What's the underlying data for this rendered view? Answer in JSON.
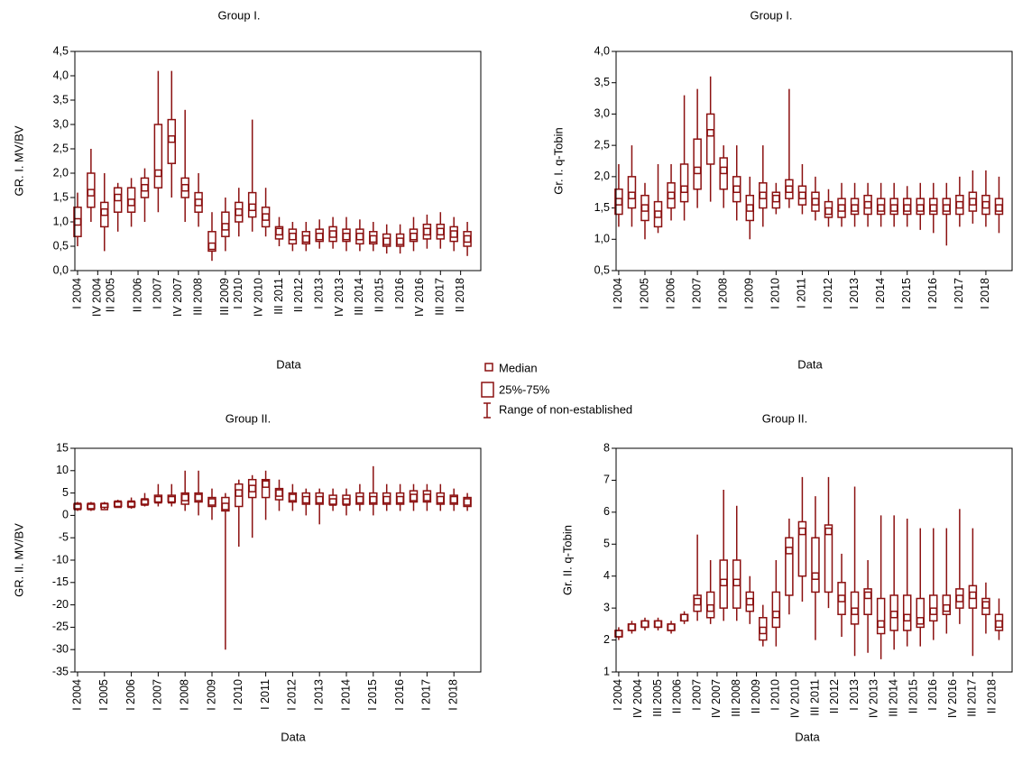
{
  "chart_data": [
    {
      "type": "box",
      "title": "Group I.",
      "x_label": "Data",
      "y_label": "GR. I. MV/BV",
      "color": "#8b1010",
      "xlim": [
        2003.9,
        2019
      ],
      "ylim": [
        0,
        4.5
      ],
      "yticks": [
        {
          "value": 0,
          "label": "0,0"
        },
        {
          "value": 0.5,
          "label": "0,5"
        },
        {
          "value": 1,
          "label": "1,0"
        },
        {
          "value": 1.5,
          "label": "1,5"
        },
        {
          "value": 2,
          "label": "2,0"
        },
        {
          "value": 2.5,
          "label": "2,5"
        },
        {
          "value": 3,
          "label": "3,0"
        },
        {
          "value": 3.5,
          "label": "3,5"
        },
        {
          "value": 4,
          "label": "4,0"
        },
        {
          "value": 4.5,
          "label": "4,5"
        }
      ],
      "xticks": [
        {
          "value": 2004,
          "label": "I 2004"
        },
        {
          "value": 2004.75,
          "label": "IV 2004"
        },
        {
          "value": 2005.25,
          "label": "II 2005"
        },
        {
          "value": 2006.25,
          "label": "II 2006"
        },
        {
          "value": 2007,
          "label": "I 2007"
        },
        {
          "value": 2007.75,
          "label": "IV 2007"
        },
        {
          "value": 2008.5,
          "label": "III 2008"
        },
        {
          "value": 2009.5,
          "label": "III 2009"
        },
        {
          "value": 2010,
          "label": "I 2010"
        },
        {
          "value": 2010.75,
          "label": "IV 2010"
        },
        {
          "value": 2011.5,
          "label": "III 2011"
        },
        {
          "value": 2012.25,
          "label": "II 2012"
        },
        {
          "value": 2013,
          "label": "I 2013"
        },
        {
          "value": 2013.75,
          "label": "IV 2013"
        },
        {
          "value": 2014.5,
          "label": "III 2014"
        },
        {
          "value": 2015.25,
          "label": "II 2015"
        },
        {
          "value": 2016,
          "label": "I 2016"
        },
        {
          "value": 2016.75,
          "label": "IV 2016"
        },
        {
          "value": 2017.5,
          "label": "III 2017"
        },
        {
          "value": 2018.25,
          "label": "II 2018"
        }
      ],
      "x": [
        2004,
        2004.5,
        2005,
        2005.5,
        2006,
        2006.5,
        2007,
        2007.5,
        2008,
        2008.5,
        2009,
        2009.5,
        2010,
        2010.5,
        2011,
        2011.5,
        2012,
        2012.5,
        2013,
        2013.5,
        2014,
        2014.5,
        2015,
        2015.5,
        2016,
        2016.5,
        2017,
        2017.5,
        2018,
        2018.5
      ],
      "median": [
        1.0,
        1.6,
        1.2,
        1.5,
        1.4,
        1.7,
        2.0,
        2.7,
        1.7,
        1.4,
        0.5,
        0.9,
        1.2,
        1.3,
        1.1,
        0.8,
        0.7,
        0.65,
        0.7,
        0.75,
        0.7,
        0.7,
        0.65,
        0.6,
        0.6,
        0.7,
        0.8,
        0.8,
        0.75,
        0.65
      ],
      "q1": [
        0.7,
        1.3,
        0.9,
        1.2,
        1.2,
        1.5,
        1.7,
        2.2,
        1.5,
        1.2,
        0.4,
        0.7,
        1.0,
        1.1,
        0.9,
        0.65,
        0.55,
        0.55,
        0.6,
        0.6,
        0.6,
        0.55,
        0.55,
        0.5,
        0.5,
        0.6,
        0.65,
        0.65,
        0.6,
        0.5
      ],
      "q3": [
        1.3,
        2.0,
        1.4,
        1.7,
        1.7,
        1.9,
        3.0,
        3.1,
        1.9,
        1.6,
        0.8,
        1.2,
        1.4,
        1.6,
        1.3,
        0.9,
        0.85,
        0.8,
        0.85,
        0.9,
        0.85,
        0.85,
        0.8,
        0.75,
        0.75,
        0.85,
        0.95,
        0.95,
        0.9,
        0.8
      ],
      "min": [
        0.5,
        1.0,
        0.4,
        0.8,
        0.9,
        1.0,
        1.2,
        1.5,
        1.0,
        0.9,
        0.2,
        0.4,
        0.7,
        0.8,
        0.7,
        0.5,
        0.4,
        0.4,
        0.45,
        0.45,
        0.4,
        0.4,
        0.4,
        0.35,
        0.35,
        0.4,
        0.45,
        0.45,
        0.4,
        0.3
      ],
      "max": [
        1.6,
        2.5,
        2.0,
        1.8,
        1.9,
        2.1,
        4.1,
        4.1,
        3.3,
        2.0,
        1.2,
        1.5,
        1.7,
        3.1,
        1.7,
        1.1,
        1.0,
        1.0,
        1.05,
        1.1,
        1.1,
        1.05,
        1.0,
        0.95,
        0.95,
        1.1,
        1.15,
        1.2,
        1.1,
        1.0
      ]
    },
    {
      "type": "box",
      "title": "Group I.",
      "x_label": "Data",
      "y_label": "Gr. I. q-Tobin",
      "color": "#8b1010",
      "xlim": [
        2003.9,
        2019
      ],
      "ylim": [
        0.5,
        4
      ],
      "yticks": [
        {
          "value": 0.5,
          "label": "0,5"
        },
        {
          "value": 1,
          "label": "1,0"
        },
        {
          "value": 1.5,
          "label": "1,5"
        },
        {
          "value": 2,
          "label": "2,0"
        },
        {
          "value": 2.5,
          "label": "2,5"
        },
        {
          "value": 3,
          "label": "3,0"
        },
        {
          "value": 3.5,
          "label": "3,5"
        },
        {
          "value": 4,
          "label": "4,0"
        }
      ],
      "xticks": [
        {
          "value": 2004,
          "label": "I 2004"
        },
        {
          "value": 2005,
          "label": "I 2005"
        },
        {
          "value": 2006,
          "label": "I 2006"
        },
        {
          "value": 2007,
          "label": "I 2007"
        },
        {
          "value": 2008,
          "label": "I 2008"
        },
        {
          "value": 2009,
          "label": "I 2009"
        },
        {
          "value": 2010,
          "label": "I 2010"
        },
        {
          "value": 2011,
          "label": "I 2011"
        },
        {
          "value": 2012,
          "label": "I 2012"
        },
        {
          "value": 2013,
          "label": "I 2013"
        },
        {
          "value": 2014,
          "label": "I 2014"
        },
        {
          "value": 2015,
          "label": "I 2015"
        },
        {
          "value": 2016,
          "label": "I 2016"
        },
        {
          "value": 2017,
          "label": "I 2017"
        },
        {
          "value": 2018,
          "label": "I 2018"
        }
      ],
      "x": [
        2004,
        2004.5,
        2005,
        2005.5,
        2006,
        2006.5,
        2007,
        2007.5,
        2008,
        2008.5,
        2009,
        2009.5,
        2010,
        2010.5,
        2011,
        2011.5,
        2012,
        2012.5,
        2013,
        2013.5,
        2014,
        2014.5,
        2015,
        2015.5,
        2016,
        2016.5,
        2017,
        2017.5,
        2018,
        2018.5
      ],
      "median": [
        1.6,
        1.7,
        1.5,
        1.4,
        1.7,
        1.8,
        2.1,
        2.7,
        2.1,
        1.8,
        1.5,
        1.7,
        1.65,
        1.8,
        1.7,
        1.6,
        1.45,
        1.5,
        1.5,
        1.55,
        1.5,
        1.5,
        1.5,
        1.5,
        1.5,
        1.5,
        1.55,
        1.6,
        1.55,
        1.5
      ],
      "q1": [
        1.4,
        1.5,
        1.3,
        1.2,
        1.5,
        1.6,
        1.8,
        2.2,
        1.8,
        1.6,
        1.3,
        1.5,
        1.5,
        1.65,
        1.55,
        1.45,
        1.35,
        1.35,
        1.4,
        1.4,
        1.4,
        1.4,
        1.4,
        1.4,
        1.4,
        1.4,
        1.4,
        1.45,
        1.4,
        1.4
      ],
      "q3": [
        1.8,
        2.0,
        1.7,
        1.6,
        1.9,
        2.2,
        2.6,
        3.0,
        2.3,
        2.0,
        1.7,
        1.9,
        1.75,
        1.95,
        1.85,
        1.75,
        1.6,
        1.65,
        1.65,
        1.7,
        1.65,
        1.65,
        1.65,
        1.65,
        1.65,
        1.65,
        1.7,
        1.75,
        1.7,
        1.65
      ],
      "min": [
        1.2,
        1.2,
        1.0,
        1.1,
        1.3,
        1.3,
        1.5,
        1.6,
        1.5,
        1.3,
        1.0,
        1.2,
        1.4,
        1.5,
        1.4,
        1.3,
        1.2,
        1.2,
        1.2,
        1.2,
        1.2,
        1.2,
        1.2,
        1.15,
        1.1,
        0.9,
        1.2,
        1.25,
        1.2,
        1.1
      ],
      "max": [
        2.2,
        2.5,
        1.9,
        2.2,
        2.2,
        3.3,
        3.4,
        3.6,
        2.5,
        2.5,
        2.0,
        2.5,
        1.9,
        3.4,
        2.2,
        2.0,
        1.8,
        1.9,
        1.9,
        1.9,
        1.9,
        1.9,
        1.85,
        1.9,
        1.9,
        1.9,
        2.0,
        2.1,
        2.1,
        2.0
      ]
    },
    {
      "type": "box",
      "title": "Group II.",
      "x_label": "Data",
      "y_label": "GR. II. MV/BV",
      "color": "#8b1010",
      "xlim": [
        2003.9,
        2019
      ],
      "ylim": [
        -35,
        15
      ],
      "yticks": [
        -35,
        -30,
        -25,
        -20,
        -15,
        -10,
        -5,
        0,
        5,
        10,
        15
      ],
      "xticks": [
        {
          "value": 2004,
          "label": "I 2004"
        },
        {
          "value": 2005,
          "label": "I 2005"
        },
        {
          "value": 2006,
          "label": "I 2006"
        },
        {
          "value": 2007,
          "label": "I 2007"
        },
        {
          "value": 2008,
          "label": "I 2008"
        },
        {
          "value": 2009,
          "label": "I 2009"
        },
        {
          "value": 2010,
          "label": "I 2010"
        },
        {
          "value": 2011,
          "label": "I 2011"
        },
        {
          "value": 2012,
          "label": "I 2012"
        },
        {
          "value": 2013,
          "label": "I 2013"
        },
        {
          "value": 2014,
          "label": "I 2014"
        },
        {
          "value": 2015,
          "label": "I 2015"
        },
        {
          "value": 2016,
          "label": "I 2016"
        },
        {
          "value": 2017,
          "label": "I 2017"
        },
        {
          "value": 2018,
          "label": "I 2018"
        }
      ],
      "x": [
        2004,
        2004.5,
        2005,
        2005.5,
        2006,
        2006.5,
        2007,
        2007.5,
        2008,
        2008.5,
        2009,
        2009.5,
        2010,
        2010.5,
        2011,
        2011.5,
        2012,
        2012.5,
        2013,
        2013.5,
        2014,
        2014.5,
        2015,
        2015.5,
        2016,
        2016.5,
        2017,
        2017.5,
        2018,
        2018.5
      ],
      "median": [
        2,
        2,
        2,
        2.5,
        2.5,
        3,
        3.5,
        3.5,
        4,
        4,
        3,
        2,
        5,
        6,
        7,
        5,
        4,
        3.5,
        3.5,
        3,
        3,
        3.5,
        3.5,
        3.5,
        3.5,
        4,
        4,
        3.5,
        3.5,
        3
      ],
      "q1": [
        1.5,
        1.5,
        1.8,
        2,
        2,
        2.5,
        3,
        3,
        2.5,
        3,
        2,
        1,
        2,
        4,
        4,
        3.5,
        3,
        2.5,
        2.5,
        2.5,
        2.5,
        2.5,
        2.5,
        2.5,
        2.5,
        3,
        3,
        2.5,
        2.5,
        2
      ],
      "q3": [
        2.5,
        2.5,
        2.6,
        3,
        3,
        3.5,
        4.5,
        4.5,
        5,
        5,
        4,
        4,
        7,
        8,
        8,
        6,
        5,
        5,
        5,
        4.5,
        4.5,
        5,
        5,
        5,
        5,
        5.5,
        5.5,
        5,
        4.5,
        4
      ],
      "min": [
        1,
        1,
        1.5,
        1.8,
        1.5,
        2,
        2,
        2,
        1,
        0,
        -1,
        -30,
        -7,
        -5,
        -1,
        1,
        1,
        0,
        -2,
        1,
        0,
        1,
        0,
        1,
        1,
        1,
        1,
        1,
        1,
        1
      ],
      "max": [
        3,
        3,
        3,
        3.5,
        4,
        5,
        7,
        7,
        10,
        10,
        6,
        5,
        8,
        9,
        10,
        8,
        7,
        6,
        6,
        6,
        6,
        7,
        11,
        7,
        7,
        7,
        7,
        7,
        6,
        5
      ]
    },
    {
      "type": "box",
      "title": "Group II.",
      "x_label": "Data",
      "y_label": "Gr. II. q-Tobin",
      "color": "#8b1010",
      "xlim": [
        2003.9,
        2019
      ],
      "ylim": [
        1,
        8
      ],
      "yticks": [
        1,
        2,
        3,
        4,
        5,
        6,
        7,
        8
      ],
      "xticks": [
        {
          "value": 2004,
          "label": "I 2004"
        },
        {
          "value": 2004.75,
          "label": "IV 2004"
        },
        {
          "value": 2005.5,
          "label": "III 2005"
        },
        {
          "value": 2006.25,
          "label": "II 2006"
        },
        {
          "value": 2007,
          "label": "I 2007"
        },
        {
          "value": 2007.75,
          "label": "IV 2007"
        },
        {
          "value": 2008.5,
          "label": "III 2008"
        },
        {
          "value": 2009.25,
          "label": "II 2009"
        },
        {
          "value": 2010,
          "label": "I 2010"
        },
        {
          "value": 2010.75,
          "label": "IV 2010"
        },
        {
          "value": 2011.5,
          "label": "III 2011"
        },
        {
          "value": 2012.25,
          "label": "II 2012"
        },
        {
          "value": 2013,
          "label": "I 2013"
        },
        {
          "value": 2013.75,
          "label": "IV 2013"
        },
        {
          "value": 2014.5,
          "label": "III 2014"
        },
        {
          "value": 2015.25,
          "label": "II 2015"
        },
        {
          "value": 2016,
          "label": "I 2016"
        },
        {
          "value": 2016.75,
          "label": "IV 2016"
        },
        {
          "value": 2017.5,
          "label": "III 2017"
        },
        {
          "value": 2018.25,
          "label": "II 2018"
        }
      ],
      "x": [
        2004,
        2004.5,
        2005,
        2005.5,
        2006,
        2006.5,
        2007,
        2007.5,
        2008,
        2008.5,
        2009,
        2009.5,
        2010,
        2010.5,
        2011,
        2011.5,
        2012,
        2012.5,
        2013,
        2013.5,
        2014,
        2014.5,
        2015,
        2015.5,
        2016,
        2016.5,
        2017,
        2017.5,
        2018,
        2018.5
      ],
      "median": [
        2.2,
        2.4,
        2.5,
        2.5,
        2.4,
        2.7,
        3.2,
        3.0,
        3.8,
        3.8,
        3.2,
        2.3,
        2.8,
        4.8,
        5.4,
        4.0,
        5.4,
        3.3,
        2.9,
        3.4,
        2.5,
        2.8,
        2.7,
        2.6,
        2.9,
        3.0,
        3.3,
        3.4,
        3.1,
        2.5
      ],
      "q1": [
        2.1,
        2.3,
        2.4,
        2.4,
        2.3,
        2.6,
        2.9,
        2.7,
        3.0,
        3.0,
        2.9,
        2.0,
        2.4,
        3.4,
        4.0,
        3.5,
        3.5,
        2.8,
        2.5,
        2.8,
        2.2,
        2.3,
        2.3,
        2.4,
        2.6,
        2.8,
        3.0,
        3.0,
        2.8,
        2.3
      ],
      "q3": [
        2.3,
        2.5,
        2.6,
        2.6,
        2.5,
        2.8,
        3.4,
        3.5,
        4.5,
        4.5,
        3.5,
        2.7,
        3.5,
        5.2,
        5.7,
        5.2,
        5.6,
        3.8,
        3.5,
        3.6,
        3.3,
        3.4,
        3.4,
        3.3,
        3.4,
        3.4,
        3.6,
        3.7,
        3.3,
        2.8
      ],
      "min": [
        2.0,
        2.2,
        2.3,
        2.3,
        2.2,
        2.5,
        2.6,
        2.5,
        2.6,
        2.6,
        2.5,
        1.8,
        1.8,
        2.8,
        3.2,
        2.0,
        3.0,
        2.1,
        1.5,
        1.6,
        1.4,
        1.7,
        1.8,
        1.8,
        2.0,
        2.2,
        2.5,
        1.5,
        2.2,
        2.0
      ],
      "max": [
        2.4,
        2.6,
        2.7,
        2.7,
        2.6,
        2.9,
        5.3,
        4.5,
        6.7,
        6.2,
        4.0,
        3.1,
        4.5,
        5.8,
        7.1,
        6.5,
        7.1,
        4.7,
        6.8,
        4.5,
        5.9,
        5.9,
        5.8,
        5.5,
        5.5,
        5.5,
        6.1,
        5.5,
        3.8,
        3.3
      ]
    }
  ],
  "legend": {
    "median": "Median",
    "box": "25%-75%",
    "whisker": "Range of non-established"
  }
}
